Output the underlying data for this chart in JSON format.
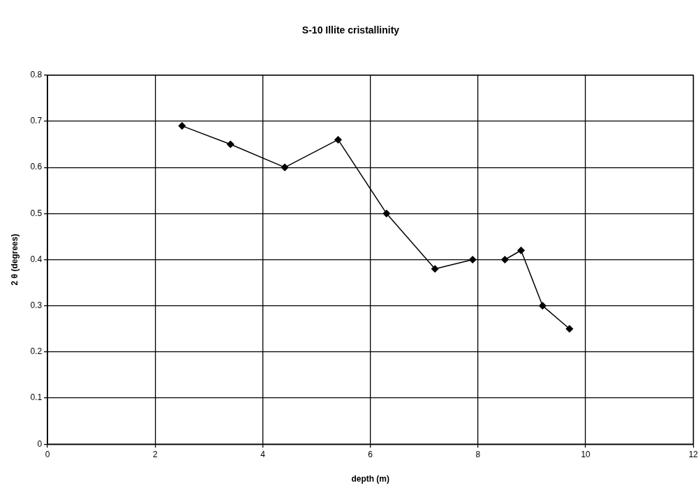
{
  "chart_data": {
    "type": "line",
    "title": "S-10 Illite cristallinity",
    "xlabel": "depth (m)",
    "ylabel": "2 θ (degrees)",
    "series": [
      {
        "color": "#000000",
        "x": [
          2.5,
          3.4,
          4.41,
          5.4,
          6.3,
          7.2,
          7.9
        ],
        "values": [
          0.69,
          0.65,
          0.6,
          0.66,
          0.5,
          0.38,
          0.4
        ]
      },
      {
        "color": "#000000",
        "x": [
          8.5,
          8.8,
          9.2,
          9.7
        ],
        "values": [
          0.4,
          0.42,
          0.3,
          0.25
        ]
      }
    ],
    "xlim": [
      0,
      12
    ],
    "xticks": [
      0,
      2,
      4,
      6,
      8,
      10,
      12
    ],
    "ylim": [
      0,
      0.8
    ],
    "yticks": [
      0,
      0.1,
      0.2,
      0.3,
      0.4,
      0.5,
      0.6,
      0.7,
      0.8
    ],
    "grid": true,
    "legend": false,
    "marker": "diamond",
    "line_style": "solid"
  }
}
